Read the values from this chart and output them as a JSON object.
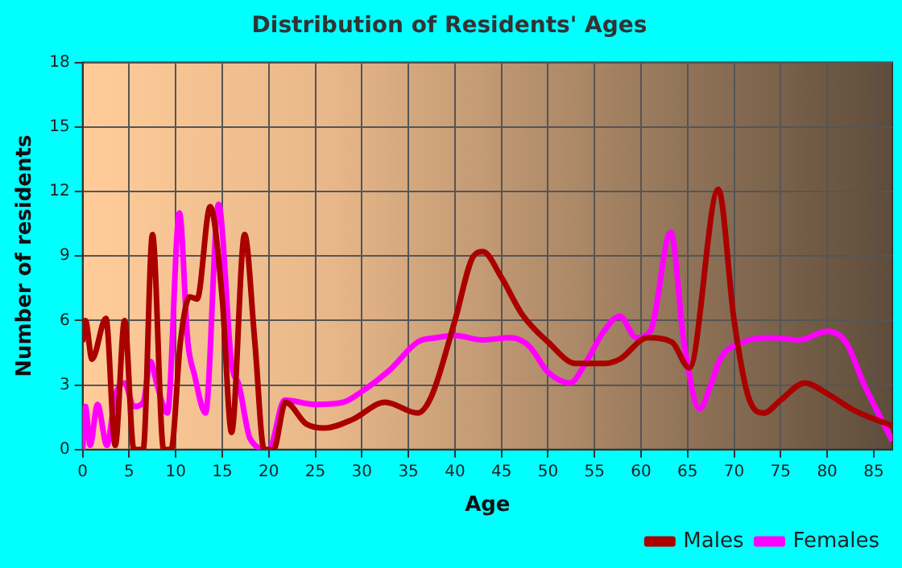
{
  "chart_data": {
    "type": "line",
    "title": "Distribution of Residents' Ages",
    "xlabel": "Age",
    "ylabel": "Number of residents",
    "xlim": [
      0,
      87
    ],
    "xticks": [
      0,
      5,
      10,
      15,
      20,
      25,
      30,
      35,
      40,
      45,
      50,
      55,
      60,
      65,
      70,
      75,
      80,
      85
    ],
    "ylim": [
      0,
      18
    ],
    "yticks": [
      0,
      3,
      6,
      9,
      12,
      15,
      18
    ],
    "grid": true,
    "legend": "bottom right",
    "marker": "none",
    "line_style": "solid",
    "series": [
      {
        "name": "Males",
        "color": "#aa0000",
        "x": [
          0,
          0.3,
          1,
          2.5,
          3.5,
          4.5,
          5.5,
          6.5,
          7.5,
          8.7,
          9.5,
          10.5,
          11.5,
          12.3,
          13.7,
          15,
          16,
          17.4,
          18.5,
          19.5,
          20.5,
          21.8,
          24,
          26,
          29,
          32.5,
          36,
          37.5,
          40,
          42,
          43,
          45,
          47.2,
          50,
          53,
          56,
          57.7,
          60.7,
          63.3,
          65.2,
          68.3,
          70,
          71.5,
          73.2,
          75,
          77.6,
          80,
          83,
          87
        ],
        "values": [
          5,
          6,
          4.2,
          6.1,
          0.2,
          6,
          0,
          0,
          10,
          0,
          0,
          5,
          7.1,
          7,
          11.3,
          7,
          0.8,
          10,
          5,
          0,
          0,
          2.2,
          1.2,
          1,
          1.4,
          2.2,
          1.7,
          2.5,
          6,
          9,
          9.2,
          8,
          6.3,
          5,
          4,
          4,
          4.2,
          5.2,
          5,
          3.8,
          12.1,
          6,
          2.5,
          1.7,
          2.3,
          3.1,
          2.6,
          1.8,
          1.1
        ]
      },
      {
        "name": "Females",
        "color": "#ff00ff",
        "x": [
          0,
          0.3,
          0.8,
          1.6,
          2.6,
          3.5,
          4.5,
          5.5,
          6.5,
          7.3,
          8,
          9.1,
          10.4,
          11.3,
          12,
          13.2,
          14.6,
          16,
          16.8,
          18,
          20,
          21.7,
          25,
          28,
          30,
          33,
          36,
          38,
          40,
          43,
          46,
          48,
          50,
          52.4,
          54,
          56,
          57.7,
          59.5,
          61,
          63.2,
          64.6,
          66.3,
          67.5,
          68.5,
          71,
          74,
          77,
          80,
          82,
          84,
          87
        ],
        "values": [
          0,
          2,
          0.2,
          2.1,
          0.2,
          2.5,
          3.1,
          2,
          2.2,
          4.1,
          3,
          1.7,
          11,
          5,
          3.5,
          1.7,
          11.4,
          4,
          3,
          0.5,
          0,
          2.3,
          2.1,
          2.2,
          2.7,
          3.7,
          5,
          5.2,
          5.3,
          5.1,
          5.2,
          4.8,
          3.6,
          3.1,
          4,
          5.5,
          6.2,
          5.2,
          5.5,
          10.1,
          5,
          1.9,
          3,
          4.2,
          5,
          5.2,
          5.1,
          5.5,
          5,
          3,
          0.4
        ]
      }
    ]
  }
}
